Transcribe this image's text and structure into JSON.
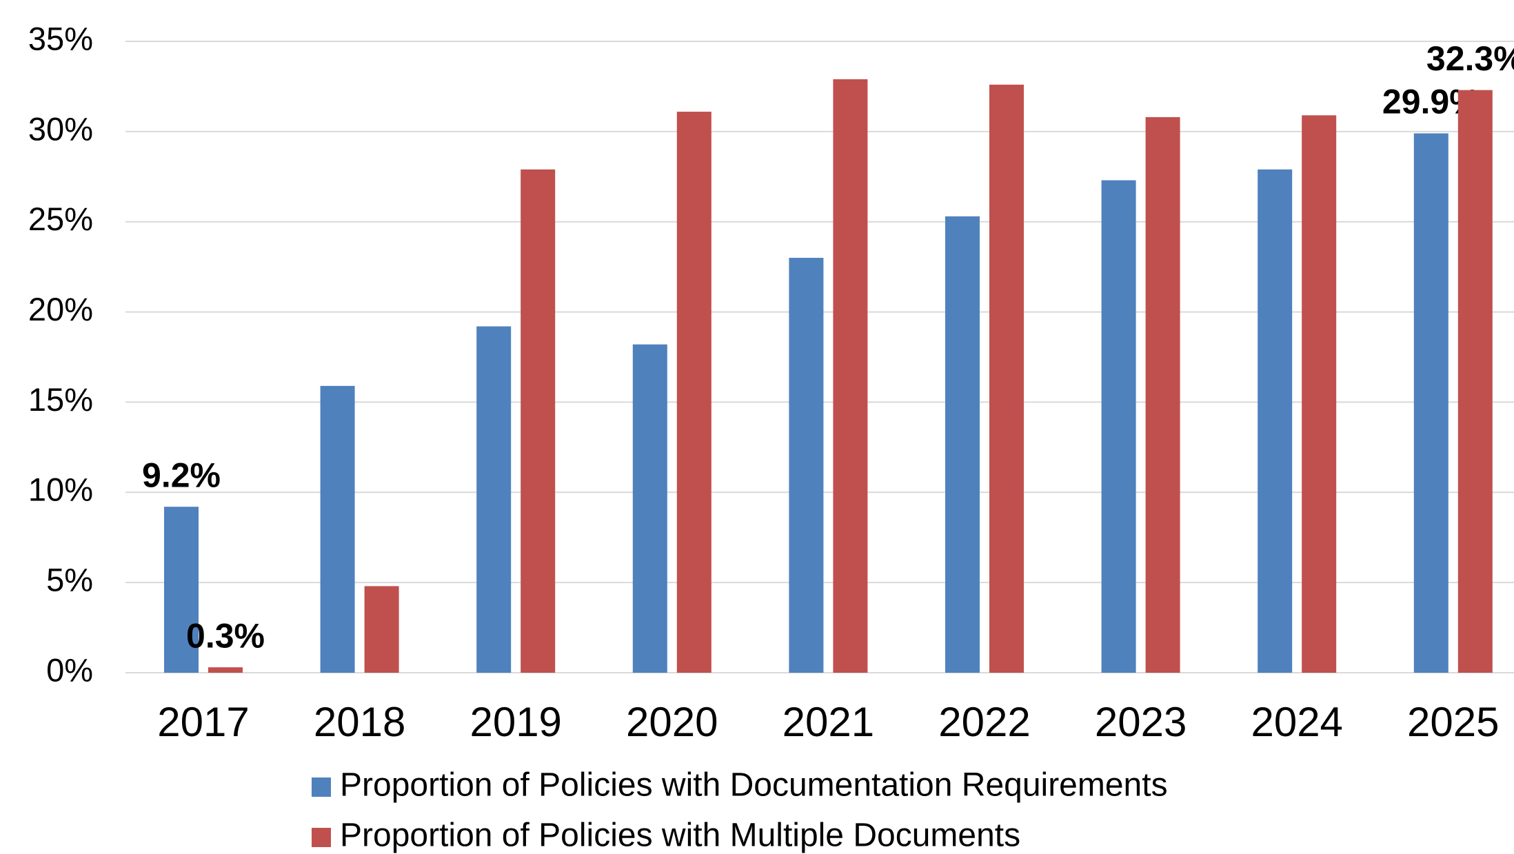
{
  "chart_data": {
    "type": "bar",
    "categories": [
      "2017",
      "2018",
      "2019",
      "2020",
      "2021",
      "2022",
      "2023",
      "2024",
      "2025"
    ],
    "series": [
      {
        "name": "Proportion of Policies with Documentation Requirements",
        "color": "#4f81bd",
        "values": [
          9.2,
          15.9,
          19.2,
          18.2,
          23.0,
          25.3,
          27.3,
          27.9,
          29.9
        ],
        "value_labels": [
          "9.2%",
          null,
          null,
          null,
          null,
          null,
          null,
          null,
          "29.9%"
        ]
      },
      {
        "name": "Proportion of Policies with Multiple Documents",
        "color": "#c0504d",
        "values": [
          0.3,
          4.8,
          27.9,
          31.1,
          32.9,
          32.6,
          30.8,
          30.9,
          32.3
        ],
        "value_labels": [
          "0.3%",
          null,
          null,
          null,
          null,
          null,
          null,
          null,
          "32.3%"
        ]
      }
    ],
    "ylim": [
      0,
      35
    ],
    "yticks": [
      {
        "value": 0,
        "label": "0%"
      },
      {
        "value": 5,
        "label": "5%"
      },
      {
        "value": 10,
        "label": "10%"
      },
      {
        "value": 15,
        "label": "15%"
      },
      {
        "value": 20,
        "label": "20%"
      },
      {
        "value": 25,
        "label": "25%"
      },
      {
        "value": 30,
        "label": "30%"
      },
      {
        "value": 35,
        "label": "35%"
      }
    ],
    "grid": true
  }
}
